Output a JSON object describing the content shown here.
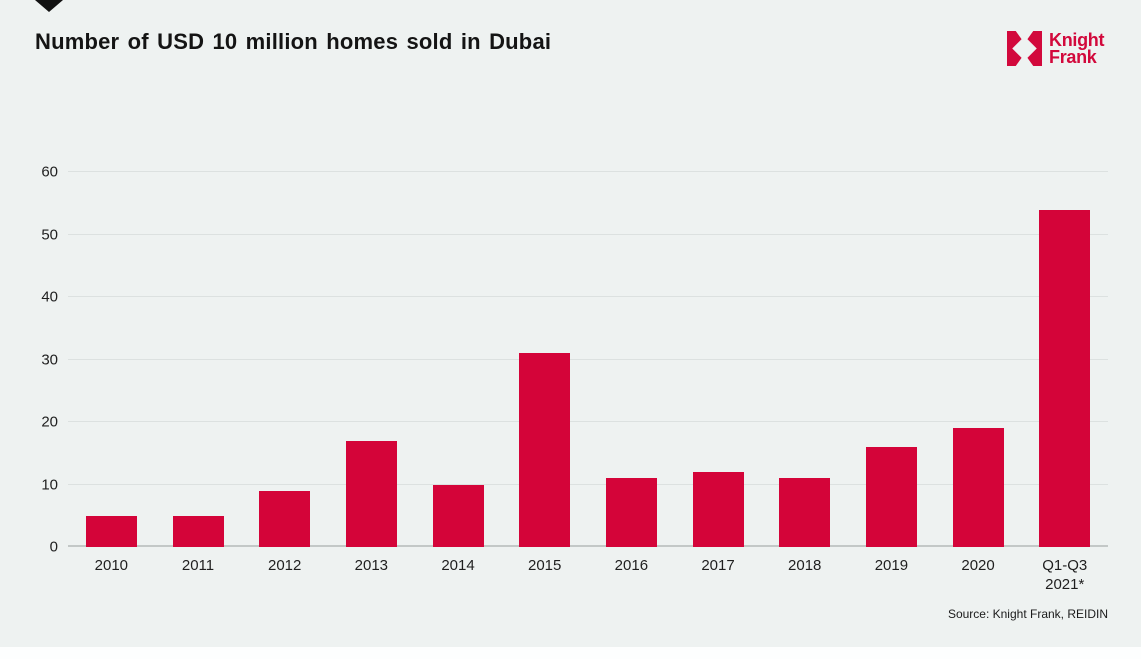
{
  "page": {
    "background_color": "#EEF2F1",
    "bottom_strip_color": "#FDFEFE"
  },
  "header": {
    "title": "Number of USD 10 million homes sold in Dubai",
    "marker_color": "#121212"
  },
  "logo": {
    "line1": "Knight",
    "line2": "Frank",
    "brand_color": "#D2093C",
    "icon": "knight-frank-pinwheel-icon"
  },
  "chart_data": {
    "type": "bar",
    "title": "Number of USD 10 million homes sold in Dubai",
    "categories": [
      "2010",
      "2011",
      "2012",
      "2013",
      "2014",
      "2015",
      "2016",
      "2017",
      "2018",
      "2019",
      "2020",
      "Q1-Q3\n2021*"
    ],
    "values": [
      5,
      5,
      9,
      17,
      10,
      31,
      11,
      12,
      11,
      16,
      19,
      54
    ],
    "xlabel": "",
    "ylabel": "",
    "ylim": [
      0,
      60
    ],
    "yticks": [
      0,
      10,
      20,
      30,
      40,
      50,
      60
    ],
    "grid": true,
    "legend": false,
    "bar_color": "#D40439",
    "gridline_color": "#DCE1E0",
    "axis_line_color": "#C3C8C7",
    "tick_label_color": "#1f1f1f"
  },
  "footer": {
    "source": "Source: Knight Frank, REIDIN"
  }
}
